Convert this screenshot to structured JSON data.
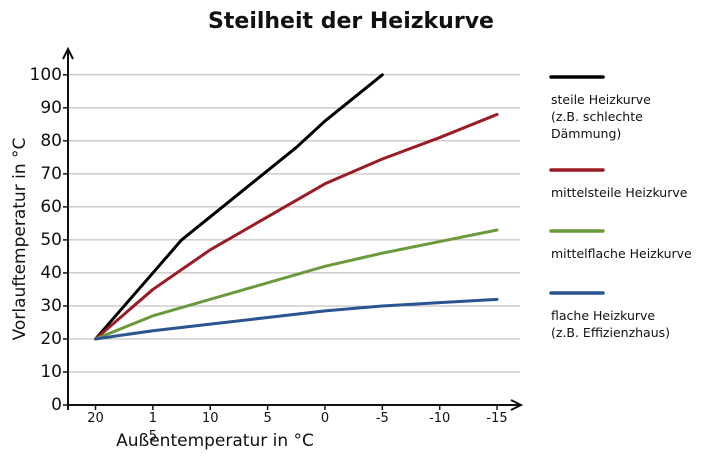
{
  "chart_data": {
    "type": "line",
    "title": "Steilheit der Heizkurve",
    "xlabel": "Außentemperatur in °C",
    "ylabel": "Vorlauftemperatur in °C",
    "xlim": [
      22.4,
      -17
    ],
    "ylim": [
      0,
      106
    ],
    "xticks": [
      20,
      {
        "value": 15,
        "label": "1\n5"
      },
      10,
      5,
      0,
      -5,
      -10,
      -15
    ],
    "yticks": [
      0,
      10,
      20,
      30,
      40,
      50,
      60,
      70,
      80,
      90,
      100
    ],
    "grid": true,
    "legend": "right",
    "series": [
      {
        "name": "steile Heizkurve\n(z.B. schlechte\nDämmung)",
        "color": "#000000",
        "x": [
          20,
          17.5,
          15,
          12.5,
          10,
          7.5,
          5,
          2.5,
          0,
          -2.5,
          -5
        ],
        "values": [
          20,
          30,
          40,
          50,
          57,
          64,
          71,
          78,
          86,
          93,
          100
        ]
      },
      {
        "name": "mittelsteile Heizkurve",
        "color": "#9b1b24",
        "x": [
          20,
          15,
          10,
          5,
          0,
          -5,
          -10,
          -15
        ],
        "values": [
          20,
          35,
          47,
          57,
          67,
          74.5,
          81,
          88
        ]
      },
      {
        "name": "mittelflache Heizkurve",
        "color": "#6a9a3c",
        "x": [
          20,
          15,
          10,
          5,
          0,
          -5,
          -10,
          -15
        ],
        "values": [
          20,
          27,
          32,
          37,
          42,
          46,
          49.5,
          53
        ]
      },
      {
        "name": "flache Heizkurve\n(z.B. Effizienzhaus)",
        "color": "#2b5591",
        "x": [
          20,
          15,
          10,
          5,
          0,
          -5,
          -10,
          -15
        ],
        "values": [
          20,
          22.5,
          24.5,
          26.5,
          28.5,
          30,
          31,
          32
        ]
      }
    ]
  }
}
